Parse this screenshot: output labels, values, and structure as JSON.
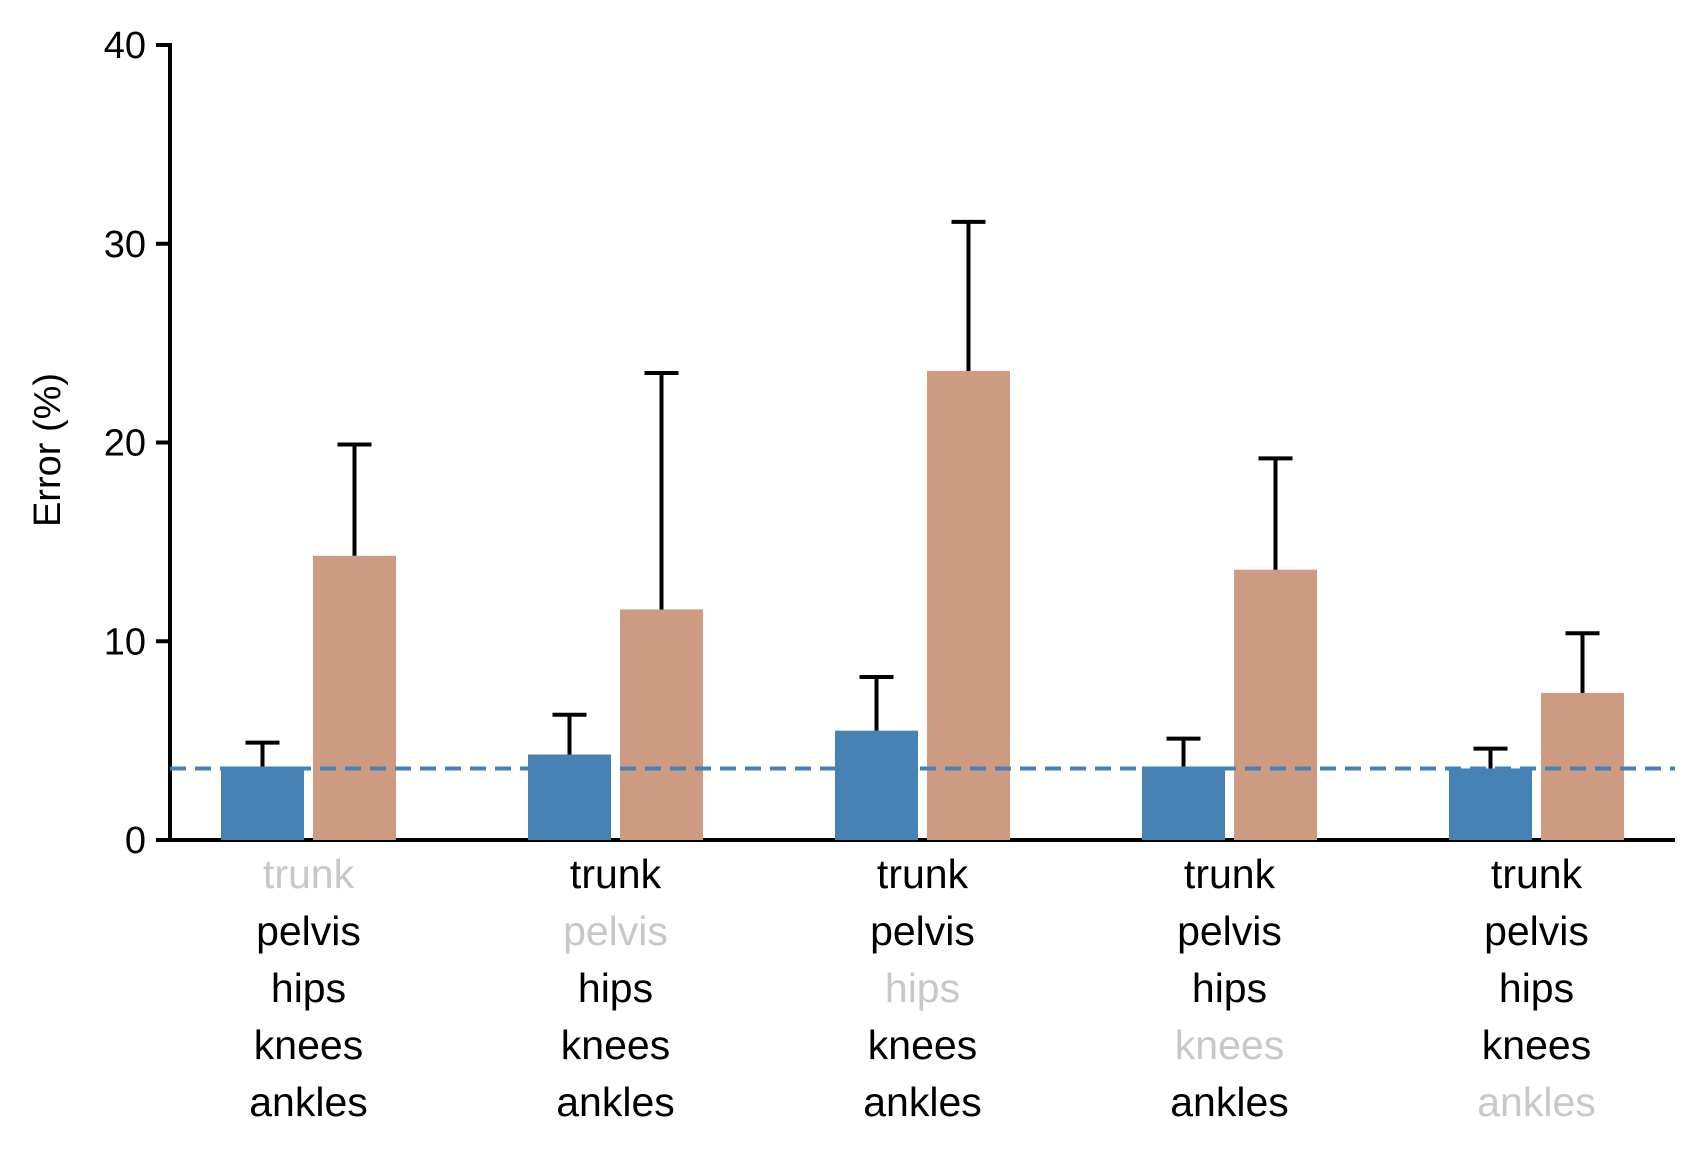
{
  "chart_data": {
    "type": "bar",
    "xlabel": "",
    "ylabel": "Error (%)",
    "ylim": [
      0,
      40
    ],
    "yticks": [
      "0",
      "10",
      "20",
      "30",
      "40"
    ],
    "grid": false,
    "legend": "none",
    "baseline": {
      "value": 3.6,
      "style": "dashed",
      "color": "#4682b4"
    },
    "segments": [
      "trunk",
      "pelvis",
      "hips",
      "knees",
      "ankles"
    ],
    "groups": [
      {
        "excluded": "trunk"
      },
      {
        "excluded": "pelvis"
      },
      {
        "excluded": "hips"
      },
      {
        "excluded": "knees"
      },
      {
        "excluded": "ankles"
      }
    ],
    "series": [
      {
        "color": "#4682b4",
        "values": [
          3.7,
          4.3,
          5.5,
          3.7,
          3.6
        ],
        "errors": [
          1.2,
          2.0,
          2.7,
          1.4,
          1.0
        ]
      },
      {
        "color": "#cd9a82",
        "values": [
          14.3,
          11.6,
          23.6,
          13.6,
          7.4
        ],
        "errors": [
          5.6,
          11.9,
          7.5,
          5.6,
          3.0
        ]
      }
    ],
    "label_colors": {
      "included": "#000000",
      "excluded": "#c8c8c8"
    }
  }
}
